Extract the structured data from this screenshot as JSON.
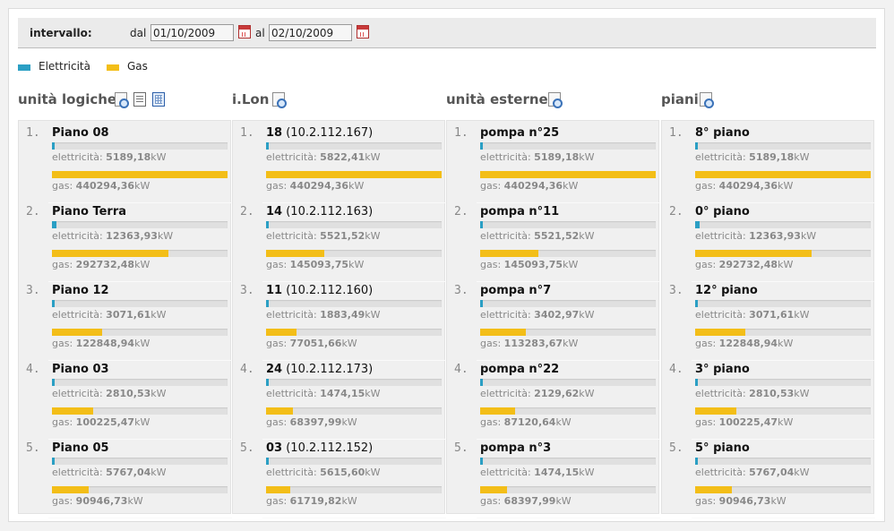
{
  "toolbar": {
    "interval_label": "intervallo:",
    "from_label": "dal",
    "from_value": "01/10/2009",
    "to_label": "al",
    "to_value": "02/10/2009"
  },
  "legend": [
    {
      "label": "Elettricità",
      "color": "#2b9fc4"
    },
    {
      "label": "Gas",
      "color": "#f3be18"
    }
  ],
  "elec_label": "elettricità:",
  "gas_label": "gas:",
  "unit": "kW",
  "columns": [
    {
      "title": "unità logiche",
      "icons": [
        "magnifier-icon",
        "document-icon",
        "grid-icon"
      ],
      "items": [
        {
          "rank": "1.",
          "name": "Piano 08",
          "extra": "",
          "elec": "5189,18",
          "gas": "440294,36",
          "elec_level": 0.015,
          "gas_level": 1.0
        },
        {
          "rank": "2.",
          "name": "Piano Terra",
          "extra": "",
          "elec": "12363,93",
          "gas": "292732,48",
          "elec_level": 0.028,
          "gas_level": 0.665
        },
        {
          "rank": "3.",
          "name": "Piano 12",
          "extra": "",
          "elec": "3071,61",
          "gas": "122848,94",
          "elec_level": 0.01,
          "gas_level": 0.285
        },
        {
          "rank": "4.",
          "name": "Piano 03",
          "extra": "",
          "elec": "2810,53",
          "gas": "100225,47",
          "elec_level": 0.01,
          "gas_level": 0.235
        },
        {
          "rank": "5.",
          "name": "Piano 05",
          "extra": "",
          "elec": "5767,04",
          "gas": "90946,73",
          "elec_level": 0.015,
          "gas_level": 0.21
        }
      ]
    },
    {
      "title": "i.Lon",
      "icons": [
        "magnifier-icon"
      ],
      "items": [
        {
          "rank": "1.",
          "name": "18",
          "extra": " (10.2.112.167)",
          "elec": "5822,41",
          "gas": "440294,36",
          "elec_level": 0.015,
          "gas_level": 1.0
        },
        {
          "rank": "2.",
          "name": "14",
          "extra": " (10.2.112.163)",
          "elec": "5521,52",
          "gas": "145093,75",
          "elec_level": 0.015,
          "gas_level": 0.33
        },
        {
          "rank": "3.",
          "name": "11",
          "extra": " (10.2.112.160)",
          "elec": "1883,49",
          "gas": "77051,66",
          "elec_level": 0.008,
          "gas_level": 0.175
        },
        {
          "rank": "4.",
          "name": "24",
          "extra": " (10.2.112.173)",
          "elec": "1474,15",
          "gas": "68397,99",
          "elec_level": 0.008,
          "gas_level": 0.155
        },
        {
          "rank": "5.",
          "name": "03",
          "extra": " (10.2.112.152)",
          "elec": "5615,60",
          "gas": "61719,82",
          "elec_level": 0.015,
          "gas_level": 0.14
        }
      ]
    },
    {
      "title": "unità esterne",
      "icons": [
        "magnifier-icon"
      ],
      "items": [
        {
          "rank": "1.",
          "name": "pompa n°25",
          "extra": "",
          "elec": "5189,18",
          "gas": "440294,36",
          "elec_level": 0.015,
          "gas_level": 1.0
        },
        {
          "rank": "2.",
          "name": "pompa n°11",
          "extra": "",
          "elec": "5521,52",
          "gas": "145093,75",
          "elec_level": 0.015,
          "gas_level": 0.33
        },
        {
          "rank": "3.",
          "name": "pompa n°7",
          "extra": "",
          "elec": "3402,97",
          "gas": "113283,67",
          "elec_level": 0.01,
          "gas_level": 0.26
        },
        {
          "rank": "4.",
          "name": "pompa n°22",
          "extra": "",
          "elec": "2129,62",
          "gas": "87120,64",
          "elec_level": 0.008,
          "gas_level": 0.2
        },
        {
          "rank": "5.",
          "name": "pompa n°3",
          "extra": "",
          "elec": "1474,15",
          "gas": "68397,99",
          "elec_level": 0.008,
          "gas_level": 0.155
        }
      ]
    },
    {
      "title": "piani",
      "icons": [
        "magnifier-icon"
      ],
      "items": [
        {
          "rank": "1.",
          "name": "8° piano",
          "extra": "",
          "elec": "5189,18",
          "gas": "440294,36",
          "elec_level": 0.015,
          "gas_level": 1.0
        },
        {
          "rank": "2.",
          "name": "0° piano",
          "extra": "",
          "elec": "12363,93",
          "gas": "292732,48",
          "elec_level": 0.028,
          "gas_level": 0.665
        },
        {
          "rank": "3.",
          "name": "12° piano",
          "extra": "",
          "elec": "3071,61",
          "gas": "122848,94",
          "elec_level": 0.01,
          "gas_level": 0.285
        },
        {
          "rank": "4.",
          "name": "3° piano",
          "extra": "",
          "elec": "2810,53",
          "gas": "100225,47",
          "elec_level": 0.01,
          "gas_level": 0.235
        },
        {
          "rank": "5.",
          "name": "5° piano",
          "extra": "",
          "elec": "5767,04",
          "gas": "90946,73",
          "elec_level": 0.015,
          "gas_level": 0.21
        }
      ]
    }
  ]
}
